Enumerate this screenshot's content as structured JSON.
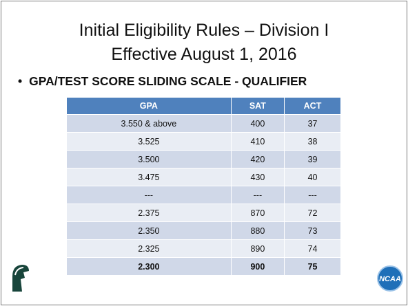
{
  "header": {
    "title": [
      "Initial Eligibility Rules – Division I",
      "Effective August 1, 2016"
    ]
  },
  "bullet": "GPA/TEST SCORE SLIDING SCALE - QUALIFIER",
  "table": {
    "columns": [
      "GPA",
      "SAT",
      "ACT"
    ],
    "rows": [
      [
        "3.550 & above",
        "400",
        "37"
      ],
      [
        "3.525",
        "410",
        "38"
      ],
      [
        "3.500",
        "420",
        "39"
      ],
      [
        "3.475",
        "430",
        "40"
      ],
      [
        "---",
        "---",
        "---"
      ],
      [
        "2.375",
        "870",
        "72"
      ],
      [
        "2.350",
        "880",
        "73"
      ],
      [
        "2.325",
        "890",
        "74"
      ],
      [
        "2.300",
        "900",
        "75"
      ]
    ]
  }
}
